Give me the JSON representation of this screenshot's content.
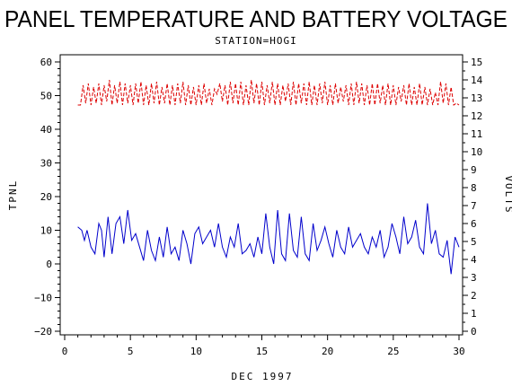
{
  "chart_data": {
    "type": "line",
    "title": "PANEL TEMPERATURE AND BATTERY VOLTAGE",
    "subtitle": "STATION=HOGI",
    "xlabel": "DEC 1997",
    "ylabel_left": "TPNL",
    "ylabel_right": "VOLTS",
    "xlim": [
      0,
      30
    ],
    "ylim_left": [
      -20,
      60
    ],
    "ylim_right": [
      0,
      15
    ],
    "xticks": [
      0,
      5,
      10,
      15,
      20,
      25,
      30
    ],
    "yticks_left": [
      -20,
      -10,
      0,
      10,
      20,
      30,
      40,
      50,
      60
    ],
    "yticks_right": [
      0,
      1,
      2,
      3,
      4,
      5,
      6,
      7,
      8,
      9,
      10,
      11,
      12,
      13,
      14,
      15
    ],
    "grid": false,
    "series": [
      {
        "axis": "left",
        "color": "#0000cc",
        "style": "solid",
        "x": [
          1.0,
          1.3,
          1.5,
          1.7,
          2.0,
          2.3,
          2.6,
          2.8,
          3.0,
          3.3,
          3.6,
          3.9,
          4.2,
          4.5,
          4.8,
          5.1,
          5.4,
          5.7,
          6.0,
          6.3,
          6.6,
          6.9,
          7.2,
          7.5,
          7.8,
          8.1,
          8.4,
          8.7,
          9.0,
          9.3,
          9.6,
          9.9,
          10.2,
          10.5,
          10.8,
          11.1,
          11.4,
          11.7,
          12.0,
          12.3,
          12.6,
          12.9,
          13.2,
          13.5,
          13.8,
          14.1,
          14.4,
          14.7,
          15.0,
          15.3,
          15.6,
          15.9,
          16.2,
          16.5,
          16.8,
          17.1,
          17.4,
          17.7,
          18.0,
          18.3,
          18.6,
          18.9,
          19.2,
          19.5,
          19.8,
          20.1,
          20.4,
          20.7,
          21.0,
          21.3,
          21.6,
          21.9,
          22.2,
          22.5,
          22.8,
          23.1,
          23.4,
          23.7,
          24.0,
          24.3,
          24.6,
          24.9,
          25.2,
          25.5,
          25.8,
          26.1,
          26.4,
          26.7,
          27.0,
          27.3,
          27.6,
          27.9,
          28.2,
          28.5,
          28.8,
          29.1,
          29.4,
          29.7,
          30.0
        ],
        "values": [
          11,
          10,
          7,
          10,
          5,
          3,
          12,
          10,
          2,
          14,
          3,
          12,
          14,
          6,
          16,
          7,
          9,
          5,
          1,
          10,
          4,
          1,
          8,
          2,
          11,
          3,
          5,
          1,
          10,
          6,
          0,
          9,
          11,
          6,
          8,
          10,
          5,
          12,
          5,
          2,
          8,
          5,
          12,
          3,
          4,
          6,
          2,
          8,
          3,
          15,
          5,
          0,
          16,
          3,
          1,
          15,
          4,
          2,
          14,
          3,
          1,
          12,
          4,
          7,
          11,
          6,
          2,
          10,
          5,
          3,
          11,
          5,
          7,
          9,
          5,
          3,
          8,
          5,
          10,
          2,
          5,
          12,
          8,
          3,
          14,
          6,
          8,
          13,
          5,
          3,
          18,
          6,
          10,
          3,
          2,
          7,
          -3,
          8,
          5
        ]
      },
      {
        "axis": "right",
        "color": "#dd0000",
        "style": "dashed",
        "x": [
          1.0,
          1.2,
          1.4,
          1.6,
          1.8,
          2.0,
          2.2,
          2.4,
          2.6,
          2.8,
          3.0,
          3.2,
          3.4,
          3.6,
          3.8,
          4.0,
          4.2,
          4.4,
          4.6,
          4.8,
          5.0,
          5.2,
          5.4,
          5.6,
          5.8,
          6.0,
          6.2,
          6.4,
          6.6,
          6.8,
          7.0,
          7.2,
          7.4,
          7.6,
          7.8,
          8.0,
          8.2,
          8.4,
          8.6,
          8.8,
          9.0,
          9.2,
          9.4,
          9.6,
          9.8,
          10.0,
          10.2,
          10.4,
          10.6,
          10.8,
          11.0,
          11.2,
          11.4,
          11.6,
          11.8,
          12.0,
          12.2,
          12.4,
          12.6,
          12.8,
          13.0,
          13.2,
          13.4,
          13.6,
          13.8,
          14.0,
          14.2,
          14.4,
          14.6,
          14.8,
          15.0,
          15.2,
          15.4,
          15.6,
          15.8,
          16.0,
          16.2,
          16.4,
          16.6,
          16.8,
          17.0,
          17.2,
          17.4,
          17.6,
          17.8,
          18.0,
          18.2,
          18.4,
          18.6,
          18.8,
          19.0,
          19.2,
          19.4,
          19.6,
          19.8,
          20.0,
          20.2,
          20.4,
          20.6,
          20.8,
          21.0,
          21.2,
          21.4,
          21.6,
          21.8,
          22.0,
          22.2,
          22.4,
          22.6,
          22.8,
          23.0,
          23.2,
          23.4,
          23.6,
          23.8,
          24.0,
          24.2,
          24.4,
          24.6,
          24.8,
          25.0,
          25.2,
          25.4,
          25.6,
          25.8,
          26.0,
          26.2,
          26.4,
          26.6,
          26.8,
          27.0,
          27.2,
          27.4,
          27.6,
          27.8,
          28.0,
          28.2,
          28.4,
          28.6,
          28.8,
          29.0,
          29.2,
          29.4,
          29.6,
          29.8,
          30.0
        ],
        "values": [
          12.6,
          12.6,
          13.7,
          12.7,
          13.8,
          12.6,
          13.6,
          12.7,
          13.8,
          12.6,
          13.7,
          12.8,
          14.0,
          12.6,
          13.7,
          12.7,
          13.9,
          12.6,
          13.8,
          12.7,
          13.7,
          12.6,
          13.8,
          12.7,
          13.9,
          12.6,
          13.7,
          12.6,
          13.8,
          12.7,
          13.9,
          12.6,
          13.6,
          12.7,
          13.8,
          12.6,
          13.7,
          12.6,
          13.8,
          12.7,
          13.9,
          12.6,
          13.7,
          12.6,
          13.6,
          12.6,
          13.7,
          12.6,
          13.8,
          12.7,
          13.5,
          12.6,
          13.5,
          13.2,
          13.8,
          12.8,
          13.7,
          12.6,
          13.9,
          12.7,
          13.8,
          12.6,
          13.9,
          12.6,
          13.7,
          12.6,
          14.0,
          12.7,
          13.8,
          12.6,
          13.9,
          12.6,
          13.7,
          12.7,
          13.9,
          12.6,
          13.8,
          12.6,
          13.7,
          12.8,
          13.8,
          12.6,
          13.9,
          12.6,
          13.8,
          12.7,
          13.8,
          12.6,
          13.9,
          12.6,
          13.7,
          12.6,
          13.8,
          12.7,
          13.9,
          12.6,
          13.7,
          12.6,
          13.8,
          12.7,
          13.6,
          12.8,
          13.7,
          12.6,
          13.8,
          12.6,
          13.9,
          12.7,
          13.8,
          12.6,
          13.7,
          12.6,
          13.8,
          12.6,
          13.8,
          12.7,
          13.7,
          12.6,
          13.8,
          12.6,
          13.7,
          12.6,
          13.6,
          12.8,
          13.7,
          12.6,
          13.8,
          12.6,
          13.6,
          12.6,
          13.8,
          12.6,
          13.6,
          12.6,
          13.5,
          12.6,
          13.3,
          12.6,
          13.9,
          12.7,
          13.8,
          12.6,
          13.6,
          12.6,
          12.7,
          12.6
        ]
      }
    ]
  }
}
